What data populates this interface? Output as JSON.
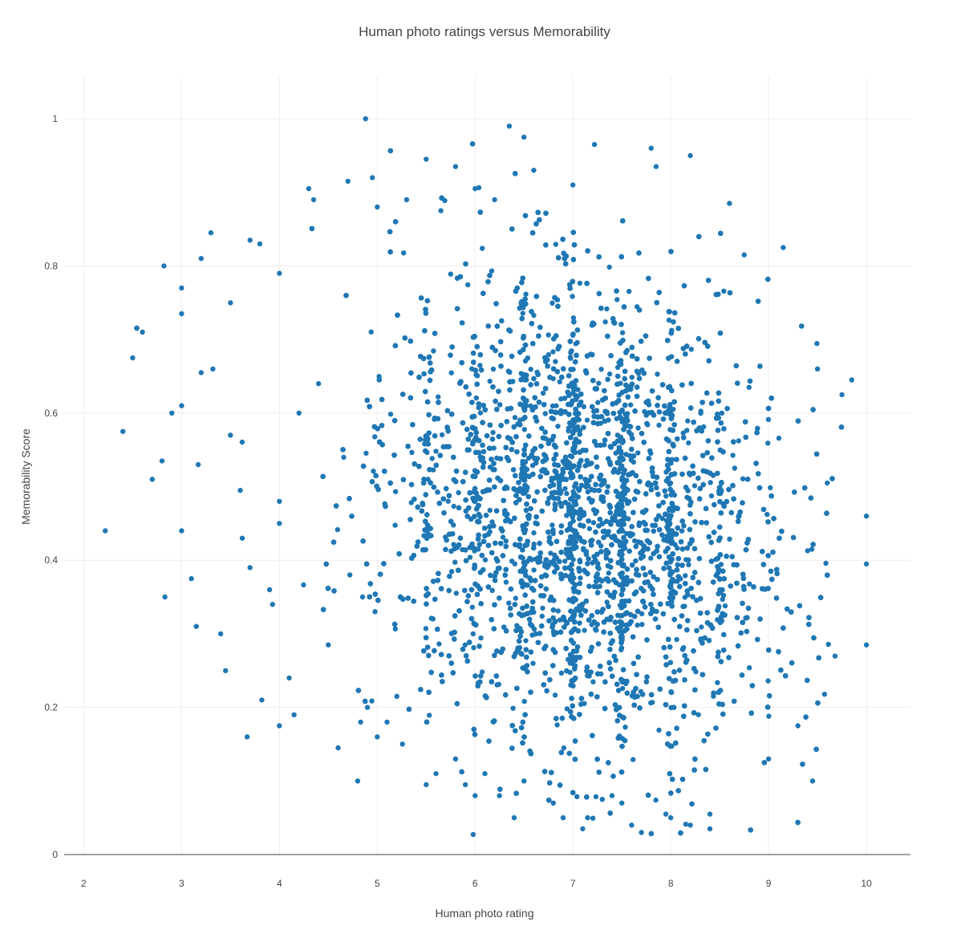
{
  "chart_data": {
    "type": "scatter",
    "title": "Human photo ratings versus Memorability",
    "xlabel": "Human photo rating",
    "ylabel": "Memorability Score",
    "xlim": [
      1.8,
      10.45
    ],
    "ylim": [
      0,
      1.06
    ],
    "x_ticks": [
      2,
      3,
      4,
      5,
      6,
      7,
      8,
      9,
      10
    ],
    "x_tick_labels": [
      "2",
      "3",
      "4",
      "5",
      "6",
      "7",
      "8",
      "9",
      "10"
    ],
    "y_ticks": [
      0,
      0.2,
      0.4,
      0.6,
      0.8,
      1
    ],
    "y_tick_labels": [
      "0",
      "0.2",
      "0.4",
      "0.6",
      "0.8",
      "1"
    ],
    "grid": true,
    "legend": "none",
    "marker_color": "#1f77b4",
    "series": [
      {
        "x": [
          2.22,
          2.4,
          2.5,
          2.6,
          2.7,
          2.8,
          2.82,
          2.83,
          2.9,
          3.0,
          3.0,
          3.0,
          3.0,
          3.1,
          3.15,
          3.17,
          3.2,
          3.2,
          3.3,
          3.32,
          3.4,
          3.45,
          3.5,
          3.5,
          3.6,
          3.62,
          3.67,
          3.7,
          3.7,
          3.8,
          3.82,
          3.9,
          3.93,
          4.0,
          4.0,
          4.0,
          4.0,
          4.1,
          4.15,
          4.2,
          4.3,
          4.35,
          4.4,
          4.5,
          4.6,
          4.7,
          4.72,
          4.8,
          4.83,
          4.85,
          4.88,
          4.9,
          4.95,
          5.0,
          5.0,
          5.1,
          5.2,
          5.3,
          5.5,
          5.5,
          5.6,
          5.65,
          5.8,
          5.8,
          5.9,
          6.0,
          6.0,
          6.1,
          6.2,
          6.25,
          6.35,
          6.4,
          6.5,
          6.5,
          6.6,
          6.8,
          6.9,
          7.0,
          7.1,
          7.15,
          7.22,
          7.3,
          7.4,
          7.5,
          7.6,
          7.7,
          7.8,
          7.85,
          7.95,
          8.0,
          8.2,
          8.2,
          8.4,
          8.4,
          8.6,
          8.75,
          8.8,
          9.0,
          9.15,
          9.3,
          9.45,
          9.5,
          9.6,
          9.75,
          9.85,
          10.0,
          10.0,
          10.0
        ],
        "y": [
          0.44,
          0.575,
          0.675,
          0.71,
          0.51,
          0.535,
          0.8,
          0.35,
          0.6,
          0.61,
          0.77,
          0.735,
          0.44,
          0.375,
          0.31,
          0.53,
          0.81,
          0.655,
          0.845,
          0.66,
          0.3,
          0.25,
          0.75,
          0.57,
          0.495,
          0.43,
          0.16,
          0.835,
          0.39,
          0.83,
          0.21,
          0.36,
          0.34,
          0.79,
          0.45,
          0.175,
          0.48,
          0.24,
          0.19,
          0.6,
          0.905,
          0.89,
          0.64,
          0.285,
          0.145,
          0.915,
          0.38,
          0.1,
          0.18,
          0.35,
          1.0,
          0.2,
          0.92,
          0.16,
          0.88,
          0.18,
          0.215,
          0.89,
          0.945,
          0.095,
          0.11,
          0.875,
          0.935,
          0.13,
          0.095,
          0.905,
          0.08,
          0.11,
          0.89,
          0.08,
          0.99,
          0.05,
          0.975,
          0.1,
          0.93,
          0.07,
          0.05,
          0.91,
          0.035,
          0.05,
          0.965,
          0.075,
          0.08,
          0.07,
          0.04,
          0.03,
          0.96,
          0.935,
          0.055,
          0.05,
          0.95,
          0.04,
          0.055,
          0.035,
          0.885,
          0.815,
          0.635,
          0.13,
          0.825,
          0.175,
          0.1,
          0.66,
          0.505,
          0.625,
          0.645,
          0.46,
          0.395,
          0.285
        ]
      }
    ]
  }
}
